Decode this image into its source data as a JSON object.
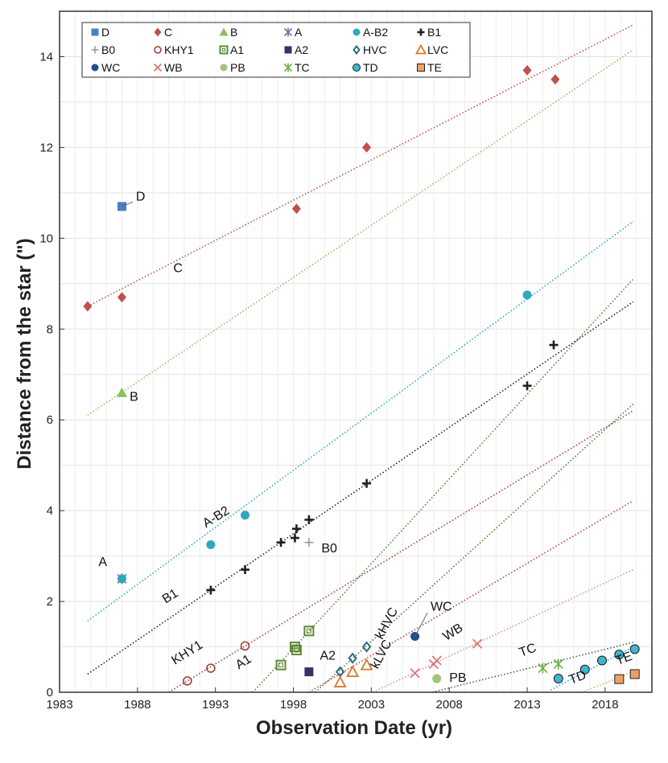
{
  "chart_data": {
    "type": "scatter",
    "xlabel": "Observation Date (yr)",
    "ylabel": "Distance  from the star (\")",
    "xlim": [
      1983,
      2021
    ],
    "ylim": [
      0,
      15
    ],
    "xticks": [
      1983,
      1988,
      1993,
      1998,
      2003,
      2008,
      2013,
      2018
    ],
    "yticks": [
      0,
      2,
      4,
      6,
      8,
      10,
      12,
      14
    ],
    "grid": true,
    "legend_position": "top-left",
    "legend": [
      {
        "key": "D",
        "label": "D",
        "marker": "square",
        "color": "#4a7fc1"
      },
      {
        "key": "C",
        "label": "C",
        "marker": "diamond",
        "color": "#c0504d"
      },
      {
        "key": "B",
        "label": "B",
        "marker": "triangle",
        "color": "#8cbf5a"
      },
      {
        "key": "A",
        "label": "A",
        "marker": "asterisk",
        "color": "#7d6fa8"
      },
      {
        "key": "AB2",
        "label": "A-B2",
        "marker": "circle",
        "color": "#2fa7c0"
      },
      {
        "key": "B1",
        "label": "B1",
        "marker": "plus",
        "color": "#1f1f1f"
      },
      {
        "key": "B0",
        "label": "B0",
        "marker": "plus-thin",
        "color": "#9a9a9a"
      },
      {
        "key": "KHY1",
        "label": "KHY1",
        "marker": "open-circle",
        "color": "#9a3b2f"
      },
      {
        "key": "A1",
        "label": "A1",
        "marker": "open-square",
        "color": "#5e8a34"
      },
      {
        "key": "A2",
        "label": "A2",
        "marker": "square",
        "color": "#3b3060"
      },
      {
        "key": "HVC",
        "label": "HVC",
        "marker": "open-diamond",
        "color": "#2b6e7e"
      },
      {
        "key": "LVC",
        "label": "LVC",
        "marker": "open-triangle",
        "color": "#d9772c"
      },
      {
        "key": "WC",
        "label": "WC",
        "marker": "circle",
        "color": "#1f4e8c"
      },
      {
        "key": "WB",
        "label": "WB",
        "marker": "x",
        "color": "#d97a7a"
      },
      {
        "key": "PB",
        "label": "PB",
        "marker": "circle",
        "color": "#9fc47a"
      },
      {
        "key": "TC",
        "label": "TC",
        "marker": "asterisk",
        "color": "#6fae45"
      },
      {
        "key": "TD",
        "label": "TD",
        "marker": "outlined-circle",
        "color": "#3fb6cf"
      },
      {
        "key": "TE",
        "label": "TE",
        "marker": "outlined-square",
        "color": "#f0a063"
      }
    ],
    "series": [
      {
        "key": "D",
        "points": [
          [
            1987.0,
            10.7
          ]
        ]
      },
      {
        "key": "C",
        "points": [
          [
            1984.8,
            8.5
          ],
          [
            1987.0,
            8.7
          ],
          [
            1998.2,
            10.65
          ],
          [
            2002.7,
            12.0
          ],
          [
            2013.0,
            13.7
          ],
          [
            2014.8,
            13.5
          ]
        ]
      },
      {
        "key": "B",
        "points": [
          [
            1987.0,
            6.6
          ]
        ]
      },
      {
        "key": "A",
        "points": [
          [
            1987.0,
            2.5
          ]
        ]
      },
      {
        "key": "AB2",
        "points": [
          [
            1987.0,
            2.5
          ],
          [
            1992.7,
            3.25
          ],
          [
            1994.9,
            3.9
          ],
          [
            2013.0,
            8.75
          ]
        ]
      },
      {
        "key": "B1",
        "points": [
          [
            1992.7,
            2.25
          ],
          [
            1994.9,
            2.7
          ],
          [
            1997.2,
            3.3
          ],
          [
            1998.1,
            3.4
          ],
          [
            1998.2,
            3.6
          ],
          [
            1999.0,
            3.8
          ],
          [
            2002.7,
            4.6
          ],
          [
            2013.0,
            6.75
          ],
          [
            2014.7,
            7.65
          ]
        ]
      },
      {
        "key": "B0",
        "points": [
          [
            1999.0,
            3.3
          ]
        ]
      },
      {
        "key": "KHY1",
        "points": [
          [
            1991.2,
            0.25
          ],
          [
            1992.7,
            0.53
          ],
          [
            1994.9,
            1.02
          ]
        ]
      },
      {
        "key": "A1",
        "points": [
          [
            1997.2,
            0.6
          ],
          [
            1998.1,
            1.0
          ],
          [
            1998.2,
            0.93
          ],
          [
            1999.0,
            1.35
          ]
        ]
      },
      {
        "key": "A2",
        "points": [
          [
            1999.0,
            0.45
          ]
        ]
      },
      {
        "key": "HVC",
        "points": [
          [
            2001.0,
            0.45
          ],
          [
            2001.8,
            0.75
          ],
          [
            2002.7,
            1.0
          ]
        ]
      },
      {
        "key": "LVC",
        "points": [
          [
            2001.0,
            0.22
          ],
          [
            2001.8,
            0.45
          ],
          [
            2002.7,
            0.6
          ]
        ]
      },
      {
        "key": "WC",
        "points": [
          [
            2005.8,
            1.23
          ]
        ]
      },
      {
        "key": "WB",
        "points": [
          [
            2005.8,
            0.42
          ],
          [
            2007.0,
            0.62
          ],
          [
            2007.2,
            0.7
          ],
          [
            2009.8,
            1.07
          ]
        ]
      },
      {
        "key": "PB",
        "points": [
          [
            2007.2,
            0.3
          ]
        ]
      },
      {
        "key": "TC",
        "points": [
          [
            2014.0,
            0.53
          ],
          [
            2015.0,
            0.62
          ]
        ]
      },
      {
        "key": "TD",
        "points": [
          [
            2015.0,
            0.3
          ],
          [
            2016.7,
            0.5
          ],
          [
            2017.8,
            0.7
          ],
          [
            2018.9,
            0.83
          ],
          [
            2019.9,
            0.95
          ]
        ]
      },
      {
        "key": "TE",
        "points": [
          [
            2018.9,
            0.29
          ],
          [
            2019.9,
            0.4
          ]
        ]
      }
    ],
    "trendlines": [
      {
        "x": [
          1984.8,
          2019.8
        ],
        "y": [
          8.5,
          14.7
        ],
        "color": "#c0504d"
      },
      {
        "x": [
          1984.8,
          2019.8
        ],
        "y": [
          6.1,
          14.15
        ],
        "color": "#8cbf5a"
      },
      {
        "x": [
          1984.8,
          2019.8
        ],
        "y": [
          1.57,
          10.37
        ],
        "color": "#2fa7c0"
      },
      {
        "x": [
          1984.8,
          2019.8
        ],
        "y": [
          0.4,
          8.6
        ],
        "color": "#1f1f1f"
      },
      {
        "x": [
          1990.0,
          2019.8
        ],
        "y": [
          0.0,
          6.2
        ],
        "color": "#a83a3a"
      },
      {
        "x": [
          1995.4,
          2019.8
        ],
        "y": [
          0.0,
          9.1
        ],
        "color": "#5e7a34"
      },
      {
        "x": [
          1999.4,
          2019.8
        ],
        "y": [
          0.0,
          6.35
        ],
        "color": "#4d7a34"
      },
      {
        "x": [
          1999.0,
          2019.8
        ],
        "y": [
          0.0,
          4.22
        ],
        "color": "#b94040"
      },
      {
        "x": [
          2003.1,
          2019.8
        ],
        "y": [
          0.0,
          2.7
        ],
        "color": "#e08f8f"
      },
      {
        "x": [
          2006.9,
          2019.8
        ],
        "y": [
          0.0,
          1.1
        ],
        "color": "#3d6e2a"
      },
      {
        "x": [
          2014.5,
          2019.8
        ],
        "y": [
          0.05,
          1.0
        ],
        "color": "#2fa7c0"
      },
      {
        "x": [
          2016.5,
          2019.8
        ],
        "y": [
          0.0,
          0.45
        ],
        "color": "#f0a063"
      }
    ],
    "annotations": [
      {
        "text": "D",
        "x": 1987.9,
        "y": 10.83,
        "rotate": 0,
        "leader": [
          1987.0,
          10.7,
          1987.7,
          10.8
        ]
      },
      {
        "text": "C",
        "x": 1990.3,
        "y": 9.25,
        "rotate": 0
      },
      {
        "text": "B",
        "x": 1987.5,
        "y": 6.42,
        "rotate": 0
      },
      {
        "text": "A-B2",
        "x": 1992.4,
        "y": 3.62,
        "rotate": -32
      },
      {
        "text": "A",
        "x": 1985.5,
        "y": 2.78,
        "rotate": 0
      },
      {
        "text": "B1",
        "x": 1989.8,
        "y": 1.95,
        "rotate": -32
      },
      {
        "text": "B0",
        "x": 1999.8,
        "y": 3.08,
        "rotate": 0
      },
      {
        "text": "KHY1",
        "x": 1990.4,
        "y": 0.6,
        "rotate": -32
      },
      {
        "text": "A1",
        "x": 1994.5,
        "y": 0.5,
        "rotate": -32
      },
      {
        "text": "A2",
        "x": 1999.7,
        "y": 0.72,
        "rotate": 0
      },
      {
        "text": "kHVC",
        "x": 2003.7,
        "y": 1.15,
        "rotate": -62
      },
      {
        "text": "kLVC",
        "x": 2003.4,
        "y": 0.5,
        "rotate": -62
      },
      {
        "text": "WC",
        "x": 2006.8,
        "y": 1.8,
        "rotate": 0,
        "leader": [
          2005.8,
          1.23,
          2006.6,
          1.75
        ]
      },
      {
        "text": "WB",
        "x": 2007.8,
        "y": 1.13,
        "rotate": -32
      },
      {
        "text": "PB",
        "x": 2008.0,
        "y": 0.23,
        "rotate": 0
      },
      {
        "text": "TC",
        "x": 2012.6,
        "y": 0.78,
        "rotate": -20
      },
      {
        "text": "TD",
        "x": 2015.8,
        "y": 0.18,
        "rotate": -20
      },
      {
        "text": "TE",
        "x": 2018.8,
        "y": 0.6,
        "rotate": -20
      }
    ]
  }
}
